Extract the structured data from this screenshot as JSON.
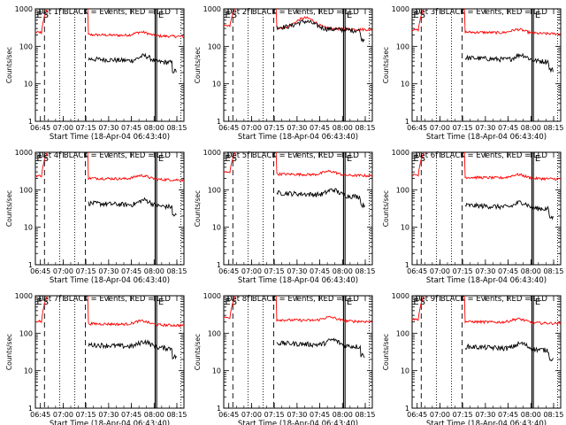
{
  "chart_data": {
    "type": "line",
    "ylabel": "Counts/sec",
    "xlabel": "Start Time (18-Apr-04 06:43:40)",
    "x_ticks": [
      "06:45",
      "07:00",
      "07:15",
      "07:30",
      "07:45",
      "08:00",
      "08:15"
    ],
    "x_range_minutes": [
      -2,
      96
    ],
    "y_scale": "log",
    "ylim": [
      1,
      1000
    ],
    "y_ticks": [
      "1",
      "10",
      "100",
      "1000"
    ],
    "event_markers": [
      "E",
      "S",
      "E"
    ],
    "series_colors": {
      "events": "#000000",
      "lld": "#ff0000"
    },
    "panels": [
      {
        "title": "Det 1f BLACK = Events, RED = LLD",
        "red_level": 170,
        "black_level": 42
      },
      {
        "title": "Det 2f BLACK = Events, RED = LLD",
        "red_level": 260,
        "black_level": 300
      },
      {
        "title": "Det 3f BLACK = Events, RED = LLD",
        "red_level": 200,
        "black_level": 45
      },
      {
        "title": "Det 4f BLACK = Events, RED = LLD",
        "red_level": 170,
        "black_level": 40
      },
      {
        "title": "Det 5f BLACK = Events, RED = LLD",
        "red_level": 220,
        "black_level": 75
      },
      {
        "title": "Det 6f BLACK = Events, RED = LLD",
        "red_level": 180,
        "black_level": 35
      },
      {
        "title": "Det 7f BLACK = Events, RED = LLD",
        "red_level": 150,
        "black_level": 45
      },
      {
        "title": "Det 8f BLACK = Events, RED = LLD",
        "red_level": 190,
        "black_level": 50
      },
      {
        "title": "Det 9f BLACK = Events, RED = LLD",
        "red_level": 170,
        "black_level": 40
      }
    ]
  }
}
